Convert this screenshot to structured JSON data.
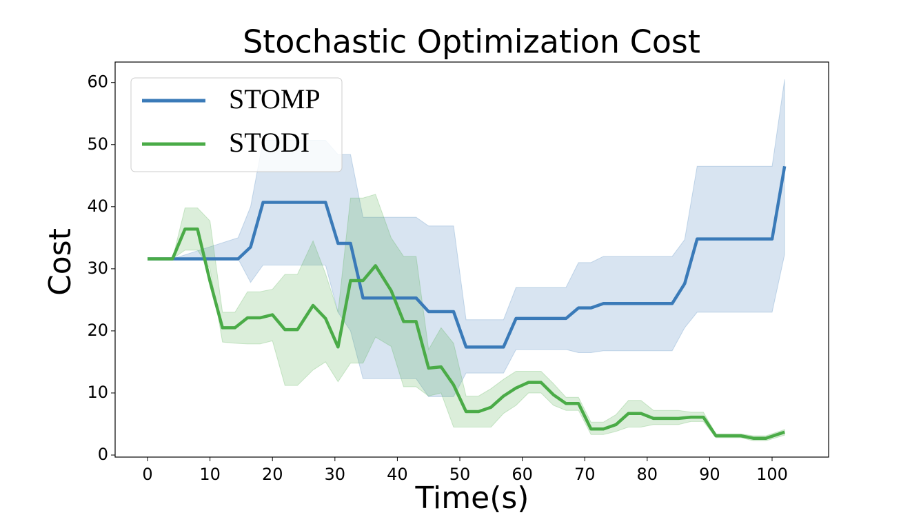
{
  "chart_data": {
    "type": "line",
    "title": "Stochastic Optimization Cost",
    "x_label": "Time(s)",
    "y_label": "Cost",
    "xlim": [
      -5.19,
      109.05
    ],
    "ylim": [
      -0.33,
      63.3
    ],
    "xticks": [
      0,
      10,
      20,
      30,
      40,
      50,
      60,
      70,
      80,
      90,
      100
    ],
    "yticks": [
      0,
      10,
      20,
      30,
      40,
      50,
      60
    ],
    "legend": "upper left",
    "band_opacity": 0.2,
    "series": [
      {
        "name": "STOMP",
        "color": "#3a7ab8",
        "x": [
          0,
          4,
          14.5,
          16.5,
          18.5,
          28.5,
          30.5,
          32.5,
          34.5,
          43,
          45,
          49,
          51,
          57,
          59,
          67,
          69,
          71,
          73,
          84,
          86,
          88,
          100,
          102
        ],
        "values": [
          31.6,
          31.6,
          31.6,
          33.5,
          40.7,
          40.7,
          34.1,
          34.1,
          25.3,
          25.3,
          23.1,
          23.1,
          17.4,
          17.4,
          22,
          22,
          23.7,
          23.7,
          24.4,
          24.4,
          27.6,
          34.8,
          34.8,
          46.5
        ],
        "lower": [
          31.6,
          31.6,
          31.6,
          27.8,
          30.6,
          30.6,
          23,
          20,
          12.3,
          12.3,
          9.4,
          9.4,
          13.2,
          13.2,
          17,
          17,
          16.5,
          16.5,
          16.8,
          16.8,
          20.5,
          23,
          23,
          32.3
        ],
        "upper": [
          31.6,
          31.6,
          35,
          40,
          50.7,
          50.7,
          48.4,
          48.4,
          38.3,
          38.3,
          36.9,
          36.9,
          21.8,
          21.8,
          27,
          27,
          31,
          31,
          32,
          32,
          34.7,
          46.5,
          46.5,
          60.5
        ]
      },
      {
        "name": "STODI",
        "color": "#4aab47",
        "x": [
          0,
          4,
          6,
          8,
          10,
          12,
          14,
          16,
          18,
          20,
          22,
          24,
          26.5,
          28.5,
          30.5,
          32.5,
          34.5,
          36.5,
          39,
          41,
          43,
          45,
          47,
          49,
          51,
          53,
          55,
          57,
          59,
          61,
          63,
          65,
          67,
          69,
          71,
          73,
          75,
          77,
          79,
          81,
          83,
          85,
          87,
          89,
          91,
          93,
          95,
          97,
          99,
          102
        ],
        "values": [
          31.6,
          31.6,
          36.4,
          36.4,
          28,
          20.5,
          20.5,
          22.1,
          22.1,
          22.6,
          20.2,
          20.2,
          24.1,
          22,
          17.4,
          28.1,
          28.1,
          30.5,
          26.5,
          21.5,
          21.5,
          14,
          14.2,
          11.3,
          7,
          7,
          7.7,
          9.5,
          10.8,
          11.7,
          11.7,
          9.7,
          8.3,
          8.3,
          4.2,
          4.2,
          4.9,
          6.7,
          6.7,
          5.9,
          5.9,
          5.9,
          6.1,
          6.1,
          3.1,
          3.1,
          3.1,
          2.7,
          2.7,
          3.7
        ],
        "lower": [
          31.6,
          31.6,
          33,
          33,
          30,
          18.2,
          18,
          17.9,
          17.9,
          18.4,
          11.2,
          11.2,
          13.7,
          15,
          11.8,
          14.8,
          14.8,
          19,
          17.5,
          11,
          11,
          9.5,
          10,
          4.5,
          4.5,
          4.5,
          4.5,
          6.7,
          8,
          10,
          10,
          8,
          7.2,
          7.2,
          3.3,
          3.3,
          3.8,
          4.5,
          4.5,
          4.9,
          4.9,
          4.9,
          5.4,
          5.4,
          2.8,
          2.8,
          2.8,
          2.3,
          2.3,
          3.2
        ],
        "upper": [
          31.6,
          31.6,
          39.8,
          39.8,
          37.7,
          23,
          23,
          26.3,
          26.3,
          26.7,
          29.1,
          29.1,
          34.5,
          29.2,
          23,
          41.4,
          41.4,
          42,
          35,
          32,
          32,
          17,
          20.5,
          18,
          9.5,
          9.5,
          10.7,
          12.2,
          13.5,
          13.5,
          13.5,
          11.5,
          9.3,
          9.3,
          5.3,
          5.3,
          6.5,
          8.8,
          8.8,
          7.2,
          7.2,
          7.2,
          6.9,
          6.9,
          3.4,
          3.4,
          3.4,
          3.1,
          3.1,
          4.1
        ]
      }
    ]
  }
}
